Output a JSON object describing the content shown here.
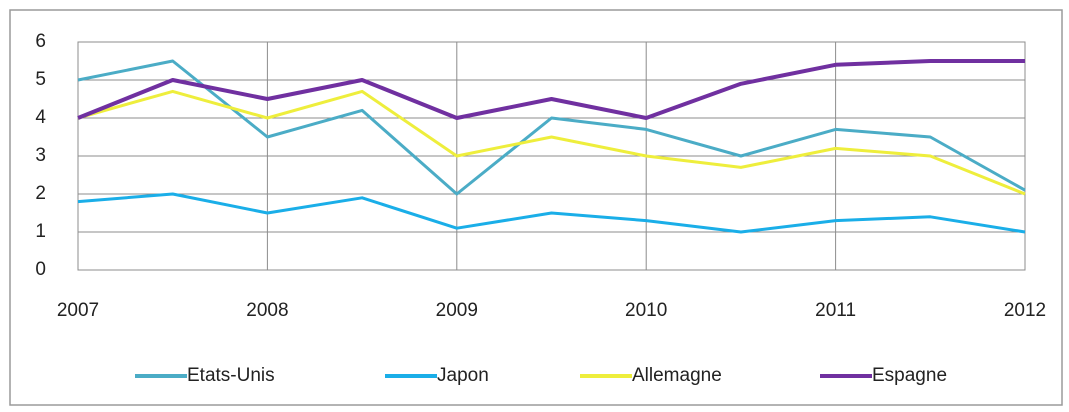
{
  "chart_data": {
    "type": "line",
    "x": [
      2007,
      2007.5,
      2008,
      2008.5,
      2009,
      2009.5,
      2010,
      2010.5,
      2011,
      2011.5,
      2012
    ],
    "xlim": [
      2007,
      2012
    ],
    "xticks": [
      2007,
      2008,
      2009,
      2010,
      2011,
      2012
    ],
    "ylim": [
      0,
      6
    ],
    "yticks": [
      0,
      1,
      2,
      3,
      4,
      5,
      6
    ],
    "grid": true,
    "legend": "bottom",
    "series": [
      {
        "name": "Etats-Unis",
        "color": "#4bacc6",
        "values": [
          5,
          5.5,
          3.5,
          4.2,
          2,
          4,
          3.7,
          3,
          3.7,
          3.5,
          2.1
        ]
      },
      {
        "name": "Japon",
        "color": "#1aaee8",
        "values": [
          1.8,
          2,
          1.5,
          1.9,
          1.1,
          1.5,
          1.3,
          1,
          1.3,
          1.4,
          1
        ]
      },
      {
        "name": "Allemagne",
        "color": "#eeee3c",
        "values": [
          4,
          4.7,
          4,
          4.7,
          3,
          3.5,
          3,
          2.7,
          3.2,
          3,
          2
        ]
      },
      {
        "name": "Espagne",
        "color": "#7030a0",
        "values": [
          4,
          5,
          4.5,
          5,
          4,
          4.5,
          4,
          4.9,
          5.4,
          5.5,
          5.5
        ]
      }
    ]
  }
}
